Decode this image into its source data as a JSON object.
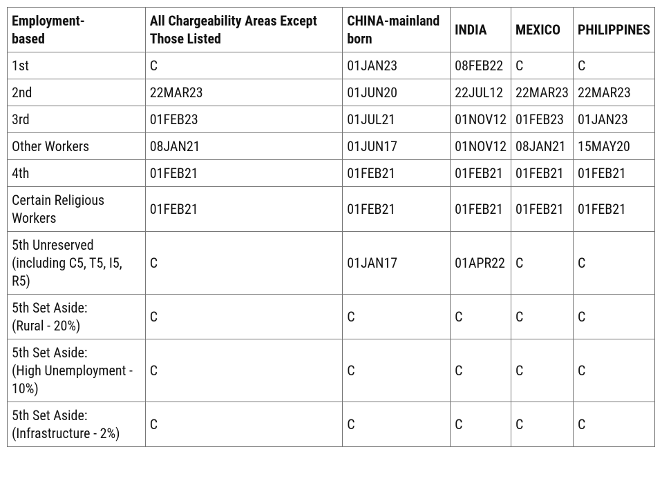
{
  "table": {
    "type": "table",
    "background_color": "#ffffff",
    "border_color": "#777777",
    "text_color": "#111111",
    "header_fontsize": 20,
    "cell_fontsize": 20,
    "columns": [
      "Employment-\nbased",
      "All Chargeability Areas Except Those Listed",
      "CHINA-mainland born",
      "INDIA",
      "MEXICO",
      "PHILIPPINES"
    ],
    "rows": [
      {
        "category": "1st",
        "all": "C",
        "china": "01JAN23",
        "india": "08FEB22",
        "mexico": "C",
        "philippines": "C"
      },
      {
        "category": "2nd",
        "all": "22MAR23",
        "china": "01JUN20",
        "india": "22JUL12",
        "mexico": "22MAR23",
        "philippines": "22MAR23"
      },
      {
        "category": "3rd",
        "all": "01FEB23",
        "china": "01JUL21",
        "india": "01NOV12",
        "mexico": "01FEB23",
        "philippines": "01JAN23"
      },
      {
        "category": "Other Workers",
        "all": "08JAN21",
        "china": "01JUN17",
        "india": "01NOV12",
        "mexico": "08JAN21",
        "philippines": "15MAY20"
      },
      {
        "category": "4th",
        "all": "01FEB21",
        "china": "01FEB21",
        "india": "01FEB21",
        "mexico": "01FEB21",
        "philippines": "01FEB21"
      },
      {
        "category": "Certain Religious Workers",
        "all": "01FEB21",
        "china": "01FEB21",
        "india": "01FEB21",
        "mexico": "01FEB21",
        "philippines": "01FEB21"
      },
      {
        "category": "5th Unreserved\n(including C5, T5, I5, R5)",
        "all": "C",
        "china": "01JAN17",
        "india": "01APR22",
        "mexico": "C",
        "philippines": "C"
      },
      {
        "category": "5th Set Aside:\n(Rural - 20%)",
        "all": "C",
        "china": "C",
        "india": "C",
        "mexico": "C",
        "philippines": "C"
      },
      {
        "category": "5th Set Aside:\n(High Unemployment - 10%)",
        "all": "C",
        "china": "C",
        "india": "C",
        "mexico": "C",
        "philippines": "C"
      },
      {
        "category": "5th Set Aside:\n(Infrastructure - 2%)",
        "all": "C",
        "china": "C",
        "india": "C",
        "mexico": "C",
        "philippines": "C"
      }
    ]
  }
}
